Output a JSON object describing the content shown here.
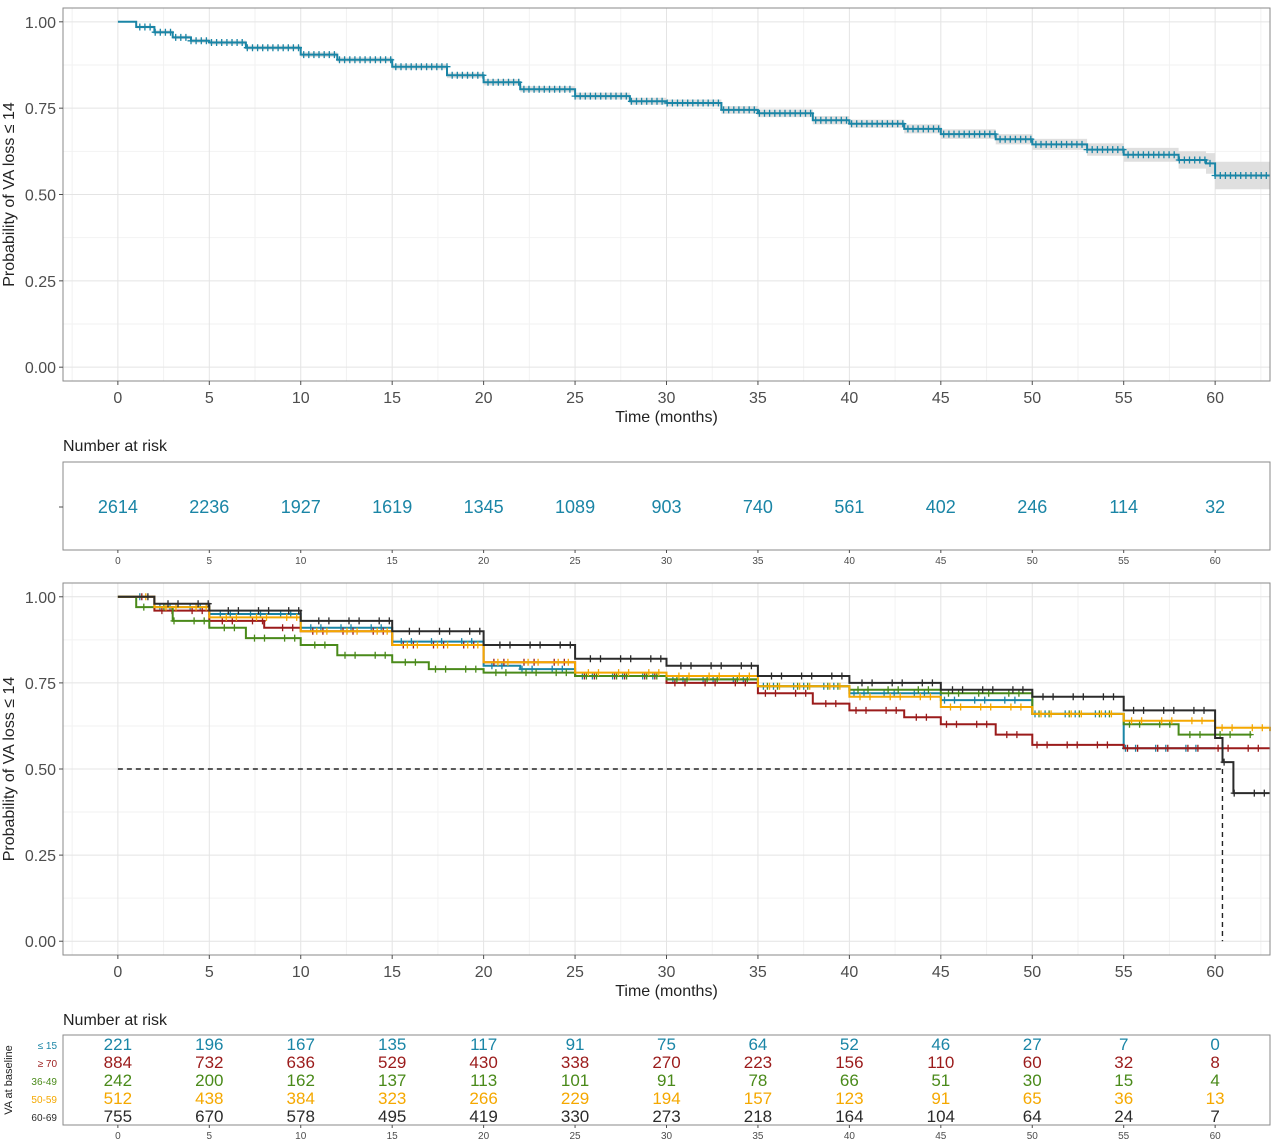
{
  "colors": {
    "panel_bg": "#ffffff",
    "grid_major": "#e4e4e4",
    "grid_minor": "#f2f2f2",
    "border": "#8a8a8a",
    "axis_text": "#4d4d4d",
    "ci_band": "#d9d9d9",
    "overall": "#1a85a6",
    "le15": "#1a85a6",
    "ge70": "#9b1b1b",
    "g36_49": "#4a8a1a",
    "g50_59": "#f5a800",
    "g60_69": "#2b2b2b",
    "median_line": "#222222"
  },
  "chart_data": [
    {
      "type": "line",
      "kind": "kaplan-meier",
      "title": "",
      "xlabel": "Time (months)",
      "ylabel": "Probability of VA loss ≤ 14",
      "xlim": [
        -3,
        63
      ],
      "ylim": [
        -0.04,
        1.04
      ],
      "x_ticks": [
        0,
        5,
        10,
        15,
        20,
        25,
        30,
        35,
        40,
        45,
        50,
        55,
        60
      ],
      "y_ticks": [
        "0.00",
        "0.25",
        "0.50",
        "0.75",
        "1.00"
      ],
      "grid": true,
      "legend": "none",
      "series": [
        {
          "color_key": "overall",
          "x": [
            0,
            1,
            2,
            3,
            4,
            5,
            7,
            10,
            12,
            15,
            18,
            20,
            22,
            25,
            28,
            30,
            33,
            35,
            38,
            40,
            43,
            45,
            48,
            50,
            53,
            55,
            58,
            59.5,
            60,
            63
          ],
          "y": [
            1.0,
            0.985,
            0.97,
            0.955,
            0.945,
            0.94,
            0.925,
            0.905,
            0.89,
            0.87,
            0.845,
            0.825,
            0.805,
            0.785,
            0.77,
            0.765,
            0.745,
            0.735,
            0.715,
            0.705,
            0.69,
            0.675,
            0.66,
            0.645,
            0.63,
            0.615,
            0.6,
            0.59,
            0.555,
            0.555
          ],
          "ci_width": [
            0,
            0.004,
            0.005,
            0.005,
            0.006,
            0.006,
            0.006,
            0.007,
            0.007,
            0.008,
            0.008,
            0.009,
            0.009,
            0.01,
            0.01,
            0.01,
            0.011,
            0.011,
            0.012,
            0.012,
            0.013,
            0.014,
            0.015,
            0.016,
            0.018,
            0.02,
            0.025,
            0.03,
            0.04,
            0.04
          ]
        }
      ]
    },
    {
      "type": "table",
      "title": "Number at risk",
      "x_ticks": [
        0,
        5,
        10,
        15,
        20,
        25,
        30,
        35,
        40,
        45,
        50,
        55,
        60
      ],
      "rows": [
        {
          "color_key": "overall",
          "values": [
            2614,
            2236,
            1927,
            1619,
            1345,
            1089,
            903,
            740,
            561,
            402,
            246,
            114,
            32
          ]
        }
      ]
    },
    {
      "type": "line",
      "kind": "kaplan-meier",
      "title": "",
      "xlabel": "Time (months)",
      "ylabel": "Probability of VA loss ≤ 14",
      "xlim": [
        -3,
        63
      ],
      "ylim": [
        -0.04,
        1.04
      ],
      "x_ticks": [
        0,
        5,
        10,
        15,
        20,
        25,
        30,
        35,
        40,
        45,
        50,
        55,
        60
      ],
      "y_ticks": [
        "0.00",
        "0.25",
        "0.50",
        "0.75",
        "1.00"
      ],
      "grid": true,
      "legend": "none",
      "median_reference": {
        "y": 0.5,
        "x": 60.4
      },
      "series": [
        {
          "color_key": "le15",
          "x": [
            0,
            2,
            5,
            10,
            15,
            20,
            22,
            25,
            30,
            35,
            40,
            45,
            50,
            55,
            57,
            60
          ],
          "y": [
            1.0,
            0.97,
            0.95,
            0.91,
            0.87,
            0.8,
            0.79,
            0.77,
            0.76,
            0.74,
            0.72,
            0.7,
            0.66,
            0.56,
            0.56,
            0.56
          ]
        },
        {
          "color_key": "ge70",
          "x": [
            0,
            2,
            5,
            8,
            10,
            15,
            20,
            25,
            30,
            35,
            38,
            40,
            43,
            45,
            48,
            50,
            55,
            60,
            63
          ],
          "y": [
            1.0,
            0.96,
            0.93,
            0.91,
            0.9,
            0.86,
            0.81,
            0.77,
            0.75,
            0.72,
            0.69,
            0.67,
            0.65,
            0.63,
            0.6,
            0.57,
            0.56,
            0.56,
            0.56
          ]
        },
        {
          "color_key": "g36_49",
          "x": [
            0,
            1,
            3,
            5,
            7,
            10,
            12,
            15,
            17,
            20,
            25,
            30,
            35,
            40,
            45,
            50,
            55,
            58,
            60,
            62
          ],
          "y": [
            1.0,
            0.97,
            0.93,
            0.91,
            0.88,
            0.86,
            0.83,
            0.81,
            0.79,
            0.78,
            0.77,
            0.76,
            0.74,
            0.73,
            0.72,
            0.66,
            0.63,
            0.6,
            0.6,
            0.6
          ]
        },
        {
          "color_key": "g50_59",
          "x": [
            0,
            2,
            5,
            10,
            15,
            20,
            25,
            30,
            35,
            40,
            45,
            50,
            55,
            60,
            63
          ],
          "y": [
            1.0,
            0.97,
            0.94,
            0.9,
            0.86,
            0.81,
            0.78,
            0.77,
            0.74,
            0.71,
            0.68,
            0.66,
            0.64,
            0.62,
            0.61
          ]
        },
        {
          "color_key": "g60_69",
          "x": [
            0,
            2,
            5,
            10,
            15,
            20,
            25,
            30,
            35,
            40,
            45,
            50,
            55,
            60,
            60.4,
            61,
            63
          ],
          "y": [
            1.0,
            0.98,
            0.96,
            0.93,
            0.9,
            0.86,
            0.82,
            0.8,
            0.77,
            0.75,
            0.73,
            0.71,
            0.67,
            0.59,
            0.52,
            0.43,
            0.43
          ]
        }
      ]
    },
    {
      "type": "table",
      "title": "Number at risk",
      "ylabel": "VA at baseline",
      "x_ticks": [
        0,
        5,
        10,
        15,
        20,
        25,
        30,
        35,
        40,
        45,
        50,
        55,
        60
      ],
      "rows": [
        {
          "label": "≤ 15",
          "color_key": "le15",
          "values": [
            221,
            196,
            167,
            135,
            117,
            91,
            75,
            64,
            52,
            46,
            27,
            7,
            0
          ]
        },
        {
          "label": "≥ 70",
          "color_key": "ge70",
          "values": [
            884,
            732,
            636,
            529,
            430,
            338,
            270,
            223,
            156,
            110,
            60,
            32,
            8
          ]
        },
        {
          "label": "36-49",
          "color_key": "g36_49",
          "values": [
            242,
            200,
            162,
            137,
            113,
            101,
            91,
            78,
            66,
            51,
            30,
            15,
            4
          ]
        },
        {
          "label": "50-59",
          "color_key": "g50_59",
          "values": [
            512,
            438,
            384,
            323,
            266,
            229,
            194,
            157,
            123,
            91,
            65,
            36,
            13
          ]
        },
        {
          "label": "60-69",
          "color_key": "g60_69",
          "values": [
            755,
            670,
            578,
            495,
            419,
            330,
            273,
            218,
            164,
            104,
            64,
            24,
            7
          ]
        }
      ]
    }
  ]
}
